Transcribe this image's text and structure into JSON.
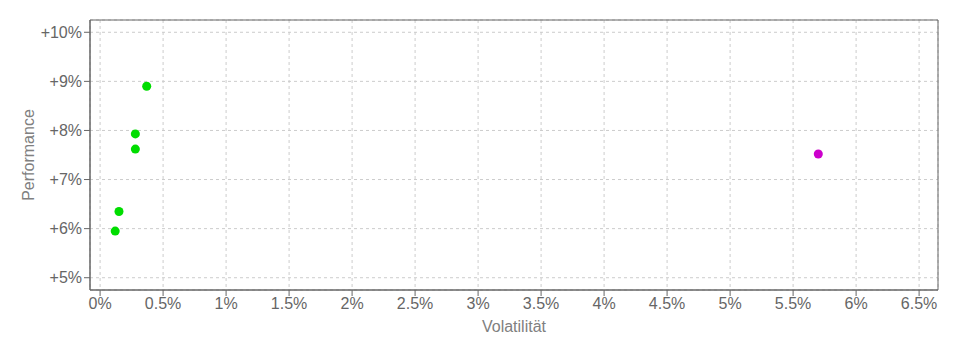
{
  "chart_data": {
    "type": "scatter",
    "xlabel": "Volatilität",
    "ylabel": "Performance",
    "xlim": [
      -0.0008,
      0.0665
    ],
    "ylim": [
      0.0475,
      0.1025
    ],
    "xticks": [
      {
        "value": 0.0,
        "label": "0%"
      },
      {
        "value": 0.005,
        "label": "0.5%"
      },
      {
        "value": 0.01,
        "label": "1%"
      },
      {
        "value": 0.015,
        "label": "1.5%"
      },
      {
        "value": 0.02,
        "label": "2%"
      },
      {
        "value": 0.025,
        "label": "2.5%"
      },
      {
        "value": 0.03,
        "label": "3%"
      },
      {
        "value": 0.035,
        "label": "3.5%"
      },
      {
        "value": 0.04,
        "label": "4%"
      },
      {
        "value": 0.045,
        "label": "4.5%"
      },
      {
        "value": 0.05,
        "label": "5%"
      },
      {
        "value": 0.055,
        "label": "5.5%"
      },
      {
        "value": 0.06,
        "label": "6%"
      },
      {
        "value": 0.065,
        "label": "6.5%"
      }
    ],
    "yticks": [
      {
        "value": 0.05,
        "label": "+5%"
      },
      {
        "value": 0.06,
        "label": "+6%"
      },
      {
        "value": 0.07,
        "label": "+7%"
      },
      {
        "value": 0.08,
        "label": "+8%"
      },
      {
        "value": 0.09,
        "label": "+9%"
      },
      {
        "value": 0.1,
        "label": "+10%"
      }
    ],
    "grid": true,
    "series": [
      {
        "color": "#00dd00",
        "x": [
          0.0037,
          0.0028,
          0.0028,
          0.0015,
          0.0012
        ],
        "values": [
          0.089,
          0.0793,
          0.0762,
          0.0635,
          0.0595
        ]
      },
      {
        "color": "#cc00cc",
        "x": [
          0.057
        ],
        "values": [
          0.0752
        ]
      }
    ]
  }
}
